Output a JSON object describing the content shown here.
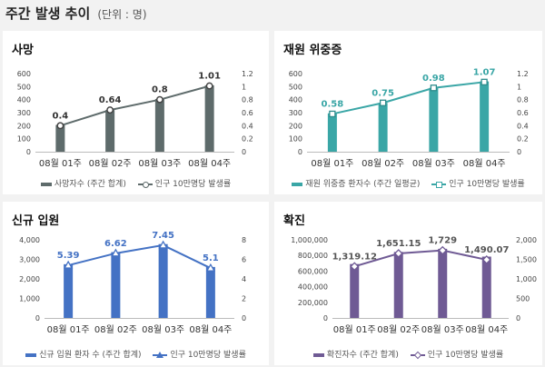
{
  "header": {
    "title": "주간 발생 추이",
    "unit": "(단위 : 명)"
  },
  "chart_data": [
    {
      "type": "bar",
      "title": "사망",
      "color": "#5e6b6b",
      "marker": "circle",
      "categories": [
        "08월 01주",
        "08월 02주",
        "08월 03주",
        "08월 04주"
      ],
      "series": [
        {
          "name": "사망자수 (주간 합계)",
          "axis": "left",
          "values": [
            205,
            320,
            405,
            510
          ]
        },
        {
          "name": "인구 10만명당 발생률",
          "axis": "right",
          "values": [
            0.4,
            0.64,
            0.8,
            1.01
          ]
        }
      ],
      "data_labels": [
        "0.4",
        "0.64",
        "0.8",
        "1.01"
      ],
      "y_left": {
        "ticks": [
          "0",
          "100",
          "200",
          "300",
          "400",
          "500",
          "600"
        ],
        "min": 0,
        "max": 600
      },
      "y_right": {
        "ticks": [
          "0",
          "0.2",
          "0.4",
          "0.6",
          "0.8",
          "1",
          "1.2"
        ],
        "min": 0,
        "max": 1.2
      },
      "legend": "bottom"
    },
    {
      "type": "bar",
      "title": "재원 위중증",
      "color": "#3aa6a6",
      "marker": "square",
      "categories": [
        "08월 01주",
        "08월 02주",
        "08월 03주",
        "08월 04주"
      ],
      "series": [
        {
          "name": "재원 위중증 환자수 (주간 일평균)",
          "axis": "left",
          "values": [
            295,
            375,
            490,
            540
          ]
        },
        {
          "name": "인구 10만명당 발생률",
          "axis": "right",
          "values": [
            0.58,
            0.75,
            0.98,
            1.07
          ]
        }
      ],
      "data_labels": [
        "0.58",
        "0.75",
        "0.98",
        "1.07"
      ],
      "y_left": {
        "ticks": [
          "0",
          "100",
          "200",
          "300",
          "400",
          "500",
          "600"
        ],
        "min": 0,
        "max": 600
      },
      "y_right": {
        "ticks": [
          "0",
          "0.2",
          "0.4",
          "0.6",
          "0.8",
          "1",
          "1.2"
        ],
        "min": 0,
        "max": 1.2
      },
      "legend": "bottom"
    },
    {
      "type": "bar",
      "title": "신규 입원",
      "color": "#4472c4",
      "marker": "triangle",
      "categories": [
        "08월 01주",
        "08월 02주",
        "08월 03주",
        "08월 04주"
      ],
      "series": [
        {
          "name": "신규 입원 환자 수 (주간 합계)",
          "axis": "left",
          "values": [
            2750,
            3370,
            3780,
            2610
          ]
        },
        {
          "name": "인구 10만명당 발생률",
          "axis": "right",
          "values": [
            5.39,
            6.62,
            7.45,
            5.1
          ]
        }
      ],
      "data_labels": [
        "5.39",
        "6.62",
        "7.45",
        "5.1"
      ],
      "y_left": {
        "ticks": [
          "0",
          "1,000",
          "2,000",
          "3,000",
          "4,000"
        ],
        "min": 0,
        "max": 4000
      },
      "y_right": {
        "ticks": [
          "0",
          "2",
          "4",
          "6",
          "8"
        ],
        "min": 0,
        "max": 8
      },
      "legend": "bottom"
    },
    {
      "type": "bar",
      "title": "확진",
      "color": "#6f5a94",
      "marker": "diamond",
      "categories": [
        "08월 01주",
        "08월 02주",
        "08월 03주",
        "08월 04주"
      ],
      "series": [
        {
          "name": "확진자수 (주간 합계)",
          "axis": "left",
          "values": [
            690000,
            845000,
            885000,
            785000
          ]
        },
        {
          "name": "인구 10만명당 발생률",
          "axis": "right",
          "values": [
            1319.12,
            1651.15,
            1729,
            1490.07
          ]
        }
      ],
      "data_labels": [
        "1,319.12",
        "1,651.15",
        "1,729",
        "1,490.07"
      ],
      "y_left": {
        "ticks": [
          "0",
          "200,000",
          "400,000",
          "600,000",
          "800,000",
          "1,000,000"
        ],
        "min": 0,
        "max": 1000000
      },
      "y_right": {
        "ticks": [
          "0",
          "500",
          "1,000",
          "1,500",
          "2,000"
        ],
        "min": 0,
        "max": 2000
      },
      "legend": "bottom"
    }
  ]
}
